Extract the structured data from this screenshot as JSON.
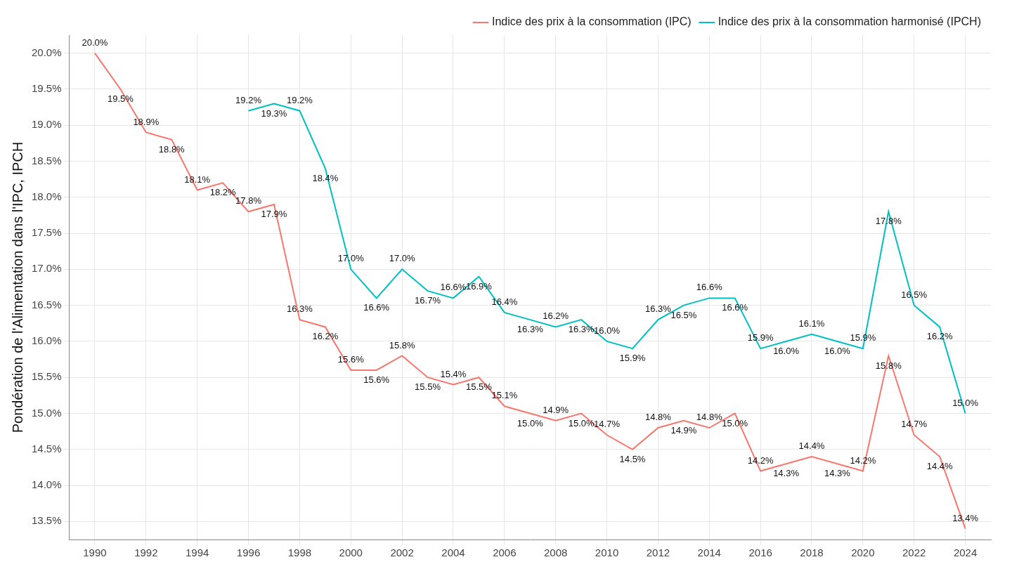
{
  "chart_data": {
    "type": "line",
    "y_label": "Pondération de l'Alimentation dans l'IPC, IPCH",
    "x": [
      1990,
      1991,
      1992,
      1993,
      1994,
      1995,
      1996,
      1997,
      1998,
      1999,
      2000,
      2001,
      2002,
      2003,
      2004,
      2005,
      2006,
      2007,
      2008,
      2009,
      2010,
      2011,
      2012,
      2013,
      2014,
      2015,
      2016,
      2017,
      2018,
      2019,
      2020,
      2021,
      2022,
      2023,
      2024
    ],
    "series": [
      {
        "name": "Indice des prix à la consommation (IPC)",
        "color": "#F8766D",
        "values": [
          20.0,
          19.5,
          18.9,
          18.8,
          18.1,
          18.2,
          17.8,
          17.9,
          16.3,
          16.2,
          15.6,
          15.6,
          15.8,
          15.5,
          15.4,
          15.5,
          15.1,
          15.0,
          14.9,
          15.0,
          14.7,
          14.5,
          14.8,
          14.9,
          14.8,
          15.0,
          14.2,
          14.3,
          14.4,
          14.3,
          14.2,
          15.8,
          14.7,
          14.4,
          13.4
        ],
        "value_labels": [
          "20.0%",
          "19.5%",
          "18.9%",
          "18.8%",
          "18.1%",
          "18.2%",
          "17.8%",
          "17.9%",
          "16.3%",
          "16.2%",
          "15.6%",
          "15.6%",
          "15.8%",
          "15.5%",
          "15.4%",
          "15.5%",
          "15.1%",
          "15.0%",
          "14.9%",
          "15.0%",
          "14.7%",
          "14.5%",
          "14.8%",
          "14.9%",
          "14.8%",
          "15.0%",
          "14.2%",
          "14.3%",
          "14.4%",
          "14.3%",
          "14.2%",
          "15.8%",
          "14.7%",
          "14.4%",
          "13.4%"
        ]
      },
      {
        "name": "Indice des prix à la consommation harmonisé (IPCH)",
        "color": "#00BFC4",
        "values": [
          null,
          null,
          null,
          null,
          null,
          null,
          19.2,
          19.3,
          19.2,
          18.4,
          17.0,
          16.6,
          17.0,
          16.7,
          16.6,
          16.9,
          16.4,
          16.3,
          16.2,
          16.3,
          16.0,
          15.9,
          16.3,
          16.5,
          16.6,
          16.6,
          15.9,
          16.0,
          16.1,
          16.0,
          15.9,
          17.8,
          16.5,
          16.2,
          15.0
        ],
        "value_labels": [
          null,
          null,
          null,
          null,
          null,
          null,
          "19.2%",
          "19.3%",
          "19.2%",
          "18.4%",
          "17.0%",
          "16.6%",
          "17.0%",
          "16.7%",
          "16.6%",
          "16.9%",
          "16.4%",
          "16.3%",
          "16.2%",
          "16.3%",
          "16.0%",
          "15.9%",
          "16.3%",
          "16.5%",
          "16.6%",
          "16.6%",
          "15.9%",
          "16.0%",
          "16.1%",
          "16.0%",
          "15.9%",
          "17.8%",
          "16.5%",
          "16.2%",
          "15.0%"
        ]
      }
    ],
    "xlim": [
      1989,
      2025
    ],
    "xticks": [
      1990,
      1992,
      1994,
      1996,
      1998,
      2000,
      2002,
      2004,
      2006,
      2008,
      2010,
      2012,
      2014,
      2016,
      2018,
      2020,
      2022,
      2024
    ],
    "ylim": [
      13.25,
      20.25
    ],
    "yticks": [
      {
        "value": 13.5,
        "label": "13.5%"
      },
      {
        "value": 14.0,
        "label": "14.0%"
      },
      {
        "value": 14.5,
        "label": "14.5%"
      },
      {
        "value": 15.0,
        "label": "15.0%"
      },
      {
        "value": 15.5,
        "label": "15.5%"
      },
      {
        "value": 16.0,
        "label": "16.0%"
      },
      {
        "value": 16.5,
        "label": "16.5%"
      },
      {
        "value": 17.0,
        "label": "17.0%"
      },
      {
        "value": 17.5,
        "label": "17.5%"
      },
      {
        "value": 18.0,
        "label": "18.0%"
      },
      {
        "value": 18.5,
        "label": "18.5%"
      },
      {
        "value": 19.0,
        "label": "19.0%"
      },
      {
        "value": 19.5,
        "label": "19.5%"
      },
      {
        "value": 20.0,
        "label": "20.0%"
      }
    ],
    "grid": true,
    "legend": "top-right",
    "data_labels": true
  }
}
